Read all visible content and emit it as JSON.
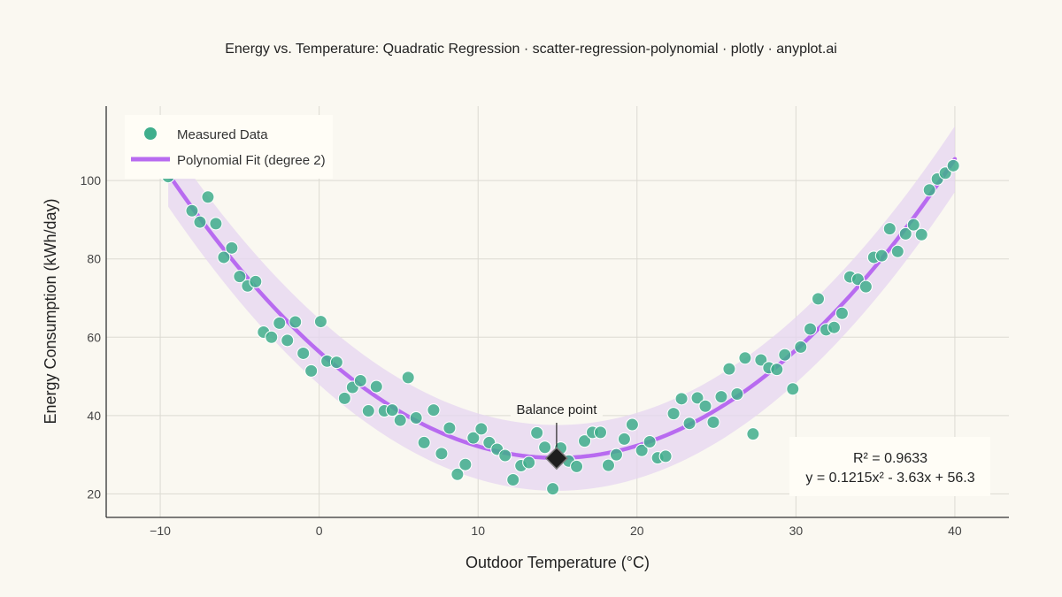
{
  "title": "Energy vs. Temperature: Quadratic Regression · scatter-regression-polynomial · plotly · anyplot.ai",
  "colors": {
    "background": "#FAF8F1",
    "points": "#3FAE8C",
    "fit_line": "#B86BF0",
    "band": "#E6D6F0",
    "marker": "#1E1E1E"
  },
  "chart_data": {
    "type": "scatter",
    "title": "Energy vs. Temperature: Quadratic Regression · scatter-regression-polynomial · plotly · anyplot.ai",
    "xlabel": "Outdoor Temperature (°C)",
    "ylabel": "Energy Consumption (kWh/day)",
    "xlim": [
      -13.4,
      43.4
    ],
    "ylim": [
      14,
      119
    ],
    "xticks": [
      -10,
      0,
      10,
      20,
      30,
      40
    ],
    "yticks": [
      20,
      40,
      60,
      80,
      100
    ],
    "xtick_labels": [
      "−10",
      "0",
      "10",
      "20",
      "30",
      "40"
    ],
    "ytick_labels": [
      "20",
      "40",
      "60",
      "80",
      "100"
    ],
    "grid": true,
    "legend_position": "top-left",
    "series": [
      {
        "name": "Measured Data",
        "type": "scatter",
        "points": [
          [
            -9.5,
            101.0
          ],
          [
            -8,
            92.3
          ],
          [
            -7.5,
            89.4
          ],
          [
            -7,
            95.8
          ],
          [
            -6.5,
            89.0
          ],
          [
            -6,
            80.4
          ],
          [
            -5.5,
            82.8
          ],
          [
            -5,
            75.5
          ],
          [
            -4.5,
            73.1
          ],
          [
            -4,
            74.2
          ],
          [
            -3.5,
            61.3
          ],
          [
            -3,
            60.0
          ],
          [
            -2.5,
            63.6
          ],
          [
            -2,
            59.2
          ],
          [
            -1.5,
            63.9
          ],
          [
            -1,
            55.9
          ],
          [
            -0.5,
            51.4
          ],
          [
            0.1,
            64.0
          ],
          [
            0.5,
            53.9
          ],
          [
            1.1,
            53.6
          ],
          [
            1.6,
            44.4
          ],
          [
            2.1,
            47.2
          ],
          [
            2.6,
            48.9
          ],
          [
            3.1,
            41.2
          ],
          [
            3.6,
            47.4
          ],
          [
            4.1,
            41.2
          ],
          [
            4.6,
            41.4
          ],
          [
            5.1,
            38.8
          ],
          [
            5.6,
            49.7
          ],
          [
            6.1,
            39.4
          ],
          [
            6.6,
            33.1
          ],
          [
            7.2,
            41.4
          ],
          [
            7.7,
            30.3
          ],
          [
            8.2,
            36.8
          ],
          [
            8.7,
            25.0
          ],
          [
            9.2,
            27.5
          ],
          [
            9.7,
            34.3
          ],
          [
            10.2,
            36.6
          ],
          [
            10.7,
            33.1
          ],
          [
            11.2,
            31.4
          ],
          [
            11.7,
            29.8
          ],
          [
            12.2,
            23.6
          ],
          [
            12.7,
            27.2
          ],
          [
            13.2,
            28.0
          ],
          [
            13.7,
            35.6
          ],
          [
            14.2,
            31.9
          ],
          [
            14.7,
            21.3
          ],
          [
            15.2,
            31.7
          ],
          [
            15.7,
            28.4
          ],
          [
            16.2,
            27.0
          ],
          [
            16.7,
            33.5
          ],
          [
            17.2,
            35.7
          ],
          [
            17.7,
            35.7
          ],
          [
            18.2,
            27.3
          ],
          [
            18.7,
            30.0
          ],
          [
            19.2,
            34.0
          ],
          [
            19.7,
            37.7
          ],
          [
            20.3,
            31.1
          ],
          [
            20.8,
            33.3
          ],
          [
            21.3,
            29.2
          ],
          [
            21.8,
            29.6
          ],
          [
            22.3,
            40.5
          ],
          [
            22.8,
            44.3
          ],
          [
            23.3,
            38.0
          ],
          [
            23.8,
            44.5
          ],
          [
            24.3,
            42.4
          ],
          [
            24.8,
            38.3
          ],
          [
            25.3,
            44.8
          ],
          [
            25.8,
            51.9
          ],
          [
            26.3,
            45.5
          ],
          [
            26.8,
            54.7
          ],
          [
            27.3,
            35.3
          ],
          [
            27.8,
            54.2
          ],
          [
            28.3,
            52.2
          ],
          [
            28.8,
            51.8
          ],
          [
            29.3,
            55.5
          ],
          [
            29.8,
            46.8
          ],
          [
            30.3,
            57.5
          ],
          [
            30.9,
            62.1
          ],
          [
            31.4,
            69.8
          ],
          [
            31.9,
            61.9
          ],
          [
            32.4,
            62.5
          ],
          [
            32.9,
            66.1
          ],
          [
            33.4,
            75.4
          ],
          [
            33.9,
            74.8
          ],
          [
            34.4,
            72.9
          ],
          [
            34.9,
            80.4
          ],
          [
            35.4,
            80.8
          ],
          [
            35.9,
            87.7
          ],
          [
            36.4,
            81.9
          ],
          [
            36.9,
            86.4
          ],
          [
            37.4,
            88.7
          ],
          [
            37.9,
            86.2
          ],
          [
            38.4,
            97.6
          ],
          [
            38.9,
            100.4
          ],
          [
            39.4,
            101.9
          ],
          [
            39.9,
            103.8
          ]
        ]
      },
      {
        "name": "Polynomial Fit (degree 2)",
        "type": "line",
        "coefficients": {
          "a": 0.1215,
          "b": -3.63,
          "c": 56.3
        },
        "x_range": [
          -9.5,
          40
        ],
        "band_halfwidth": 8.4
      }
    ],
    "annotations": [
      {
        "text": "Balance point",
        "x": 14.94,
        "y": 29.1
      }
    ]
  },
  "stats": {
    "r2": "R² = 0.9633",
    "equation": "y = 0.1215x² - 3.63x + 56.3"
  }
}
